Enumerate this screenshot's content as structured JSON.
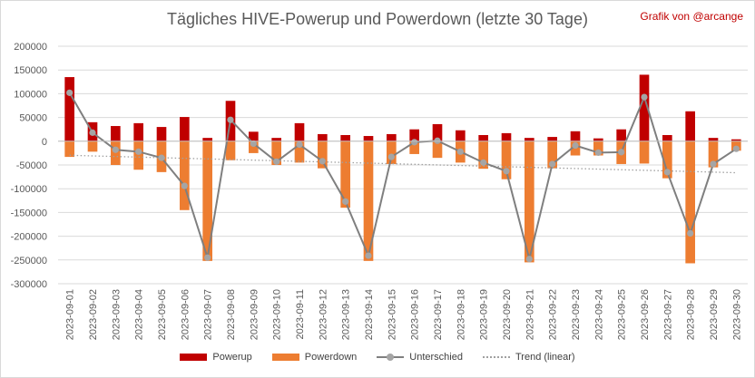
{
  "title": "Tägliches HIVE-Powerup und Powerdown (letzte 30 Tage)",
  "credit": "Grafik von @arcange",
  "colors": {
    "powerup": "#c00000",
    "powerdown": "#ed7d31",
    "unterschied_line": "#7f7f7f",
    "unterschied_marker": "#a5a5a5",
    "trend": "#a0a0a0",
    "grid": "#d9d9d9",
    "axis_text": "#595959"
  },
  "chart_data": {
    "type": "bar",
    "title": "Tägliches HIVE-Powerup und Powerdown (letzte 30 Tage)",
    "stacked": true,
    "ylim": [
      -300000,
      200000
    ],
    "yticks": [
      200000,
      150000,
      100000,
      50000,
      0,
      -50000,
      -100000,
      -150000,
      -200000,
      -250000,
      -300000
    ],
    "grid": true,
    "legend_position": "bottom",
    "categories": [
      "2023-09-01",
      "2023-09-02",
      "2023-09-03",
      "2023-09-04",
      "2023-09-05",
      "2023-09-06",
      "2023-09-07",
      "2023-09-08",
      "2023-09-09",
      "2023-09-10",
      "2023-09-11",
      "2023-09-12",
      "2023-09-13",
      "2023-09-14",
      "2023-09-15",
      "2023-09-16",
      "2023-09-17",
      "2023-09-18",
      "2023-09-19",
      "2023-09-20",
      "2023-09-21",
      "2023-09-22",
      "2023-09-23",
      "2023-09-24",
      "2023-09-25",
      "2023-09-26",
      "2023-09-27",
      "2023-09-28",
      "2023-09-29",
      "2023-09-30"
    ],
    "series": [
      {
        "name": "Powerup",
        "kind": "bar",
        "values": [
          135000,
          40000,
          32000,
          38000,
          30000,
          51000,
          7000,
          85000,
          20000,
          7000,
          38000,
          15000,
          13000,
          11000,
          15000,
          25000,
          36000,
          23000,
          13000,
          17000,
          7000,
          9000,
          21000,
          6000,
          25000,
          140000,
          13000,
          63000,
          7000,
          4000
        ]
      },
      {
        "name": "Powerdown",
        "kind": "bar",
        "values": [
          -33000,
          -22000,
          -50000,
          -60000,
          -65000,
          -145000,
          -252000,
          -40000,
          -25000,
          -50000,
          -45000,
          -57000,
          -140000,
          -252000,
          -48000,
          -27000,
          -35000,
          -45000,
          -58000,
          -80000,
          -255000,
          -57000,
          -30000,
          -30000,
          -48000,
          -47000,
          -78000,
          -257000,
          -55000,
          -20000
        ]
      },
      {
        "name": "Unterschied",
        "kind": "line",
        "values": [
          102000,
          18000,
          -18000,
          -22000,
          -35000,
          -94000,
          -245000,
          45000,
          -5000,
          -43000,
          -7000,
          -42000,
          -127000,
          -241000,
          -33000,
          -2000,
          1000,
          -22000,
          -45000,
          -63000,
          -248000,
          -48000,
          -9000,
          -24000,
          -23000,
          93000,
          -65000,
          -194000,
          -48000,
          -16000
        ]
      },
      {
        "name": "Trend (linear)",
        "kind": "trend",
        "values": [
          -29600,
          -30900,
          -32200,
          -33400,
          -34700,
          -36000,
          -37200,
          -38500,
          -39800,
          -41000,
          -42300,
          -43500,
          -44800,
          -46100,
          -47300,
          -48600,
          -49900,
          -51100,
          -52400,
          -53600,
          -54900,
          -56200,
          -57400,
          -58700,
          -60000,
          -61200,
          -62500,
          -63700,
          -65000,
          -66300
        ]
      }
    ]
  }
}
